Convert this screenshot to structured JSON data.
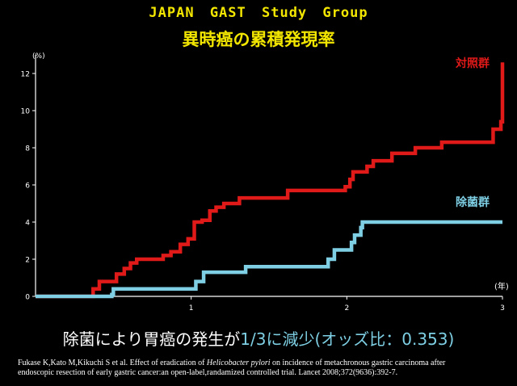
{
  "header": {
    "title": "JAPAN GAST Study Group",
    "subtitle": "異時癌の累積発現率"
  },
  "chart_data": {
    "type": "line",
    "step": true,
    "ylabel": "(%)",
    "xlabel": "(年)",
    "xlim": [
      0,
      3
    ],
    "ylim": [
      0,
      13
    ],
    "xticks": [
      1,
      2,
      3
    ],
    "yticks": [
      0,
      2,
      4,
      6,
      8,
      10,
      12
    ],
    "grid": false,
    "series": [
      {
        "name": "対照群",
        "color": "#e01919",
        "x": [
          0,
          0.37,
          0.41,
          0.52,
          0.57,
          0.61,
          0.65,
          0.82,
          0.87,
          0.93,
          0.98,
          1.02,
          1.07,
          1.12,
          1.16,
          1.21,
          1.31,
          1.62,
          1.99,
          2.02,
          2.04,
          2.13,
          2.17,
          2.29,
          2.44,
          2.61,
          2.94,
          2.99,
          3.0
        ],
        "y": [
          0,
          0.4,
          0.8,
          1.2,
          1.5,
          1.8,
          2.0,
          2.2,
          2.4,
          2.8,
          3.1,
          4.0,
          4.1,
          4.6,
          4.8,
          5.0,
          5.3,
          5.7,
          5.9,
          6.3,
          6.7,
          7.0,
          7.3,
          7.7,
          8.0,
          8.3,
          9.0,
          9.4,
          12.6
        ]
      },
      {
        "name": "除菌群",
        "color": "#7ecfe4",
        "x": [
          0,
          0.49,
          0.5,
          1.03,
          1.08,
          1.35,
          1.88,
          1.92,
          1.96,
          2.03,
          2.05,
          2.09,
          2.1,
          3.0
        ],
        "y": [
          0,
          0.1,
          0.4,
          0.8,
          1.3,
          1.6,
          2.0,
          2.5,
          2.5,
          2.9,
          3.3,
          3.7,
          4.0,
          4.0
        ]
      }
    ]
  },
  "conclusion": {
    "prefix": "除菌により胃癌の発生が",
    "highlight": "1/3に減少(オッズ比：0.353)"
  },
  "citation": {
    "line1_prefix": "Fukase K,Kato M,Kikuchi S et al.   Effect of eradication of ",
    "line1_italic": "Helicobacter pylori",
    "line1_suffix": " on incidence of metachronous gastric carcinoma after",
    "line2": "endoscopic resection of early gastric cancer:an open-label,randamized controlled trial.   Lancet 2008;372(9636):392-7."
  }
}
